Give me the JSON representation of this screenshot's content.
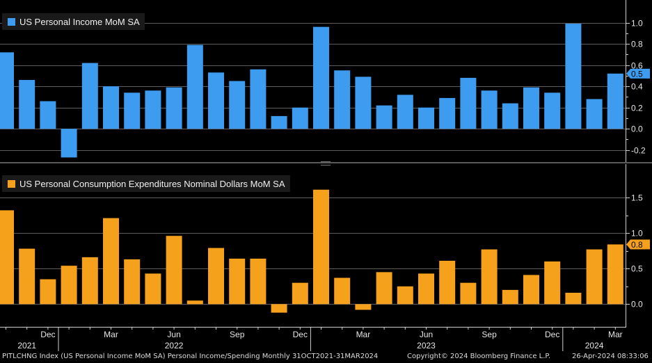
{
  "chart_data": [
    {
      "type": "bar",
      "title": "US Personal Income MoM SA",
      "color": "#3d9cf0",
      "categories": [
        "Oct 2021",
        "Nov 2021",
        "Dec 2021",
        "Jan 2022",
        "Feb 2022",
        "Mar 2022",
        "Apr 2022",
        "May 2022",
        "Jun 2022",
        "Jul 2022",
        "Aug 2022",
        "Sep 2022",
        "Oct 2022",
        "Nov 2022",
        "Dec 2022",
        "Jan 2023",
        "Feb 2023",
        "Mar 2023",
        "Apr 2023",
        "May 2023",
        "Jun 2023",
        "Jul 2023",
        "Aug 2023",
        "Sep 2023",
        "Oct 2023",
        "Nov 2023",
        "Dec 2023",
        "Jan 2024",
        "Feb 2024",
        "Mar 2024"
      ],
      "values": [
        0.72,
        0.46,
        0.26,
        -0.27,
        0.62,
        0.4,
        0.34,
        0.36,
        0.39,
        0.79,
        0.53,
        0.45,
        0.56,
        0.12,
        0.2,
        0.96,
        0.55,
        0.49,
        0.22,
        0.32,
        0.2,
        0.29,
        0.48,
        0.36,
        0.24,
        0.39,
        0.34,
        0.99,
        0.28,
        0.52
      ],
      "ylim": [
        -0.3,
        1.2
      ],
      "yticks": [
        -0.2,
        0.0,
        0.2,
        0.4,
        0.6,
        0.8,
        1.0
      ],
      "ytick_labels": [
        "-0.2",
        "0.0",
        "0.2",
        "0.4",
        "0.6",
        "0.8",
        "1.0"
      ],
      "last_value_label": "0.5"
    },
    {
      "type": "bar",
      "title": "US Personal Consumption Expenditures Nominal Dollars MoM SA",
      "color": "#f5a11c",
      "categories": [
        "Oct 2021",
        "Nov 2021",
        "Dec 2021",
        "Jan 2022",
        "Feb 2022",
        "Mar 2022",
        "Apr 2022",
        "May 2022",
        "Jun 2022",
        "Jul 2022",
        "Aug 2022",
        "Sep 2022",
        "Oct 2022",
        "Nov 2022",
        "Dec 2022",
        "Jan 2023",
        "Feb 2023",
        "Mar 2023",
        "Apr 2023",
        "May 2023",
        "Jun 2023",
        "Jul 2023",
        "Aug 2023",
        "Sep 2023",
        "Oct 2023",
        "Nov 2023",
        "Dec 2023",
        "Jan 2024",
        "Feb 2024",
        "Mar 2024"
      ],
      "values": [
        1.32,
        0.78,
        0.35,
        0.54,
        0.66,
        1.21,
        0.63,
        0.43,
        0.96,
        0.05,
        0.79,
        0.64,
        0.64,
        -0.12,
        0.3,
        1.61,
        0.37,
        -0.08,
        0.45,
        0.25,
        0.43,
        0.61,
        0.3,
        0.77,
        0.2,
        0.41,
        0.6,
        0.16,
        0.77,
        0.84
      ],
      "ylim": [
        -0.3,
        1.95
      ],
      "yticks": [
        0.0,
        0.5,
        1.0,
        1.5
      ],
      "ytick_labels": [
        "0.0",
        "0.5",
        "1.0",
        "1.5"
      ],
      "last_value_label": "0.8"
    }
  ],
  "x_axis": {
    "month_labels": [
      {
        "index": 2,
        "label": "Dec"
      },
      {
        "index": 5,
        "label": "Mar"
      },
      {
        "index": 8,
        "label": "Jun"
      },
      {
        "index": 11,
        "label": "Sep"
      },
      {
        "index": 14,
        "label": "Dec"
      },
      {
        "index": 17,
        "label": "Mar"
      },
      {
        "index": 20,
        "label": "Jun"
      },
      {
        "index": 23,
        "label": "Sep"
      },
      {
        "index": 26,
        "label": "Dec"
      },
      {
        "index": 29,
        "label": "Mar"
      }
    ],
    "year_labels": [
      {
        "index": 1,
        "label": "2021"
      },
      {
        "index": 8,
        "label": "2022"
      },
      {
        "index": 20,
        "label": "2023"
      },
      {
        "index": 28,
        "label": "2024"
      }
    ]
  },
  "footer": {
    "left": "PITLCHNG Index (US Personal Income MoM SA) Personal Income/Spending  Monthly 31OCT2021-31MAR2024",
    "center": "Copyright© 2024 Bloomberg Finance L.P.",
    "right": "26-Apr-2024 08:33:06"
  }
}
